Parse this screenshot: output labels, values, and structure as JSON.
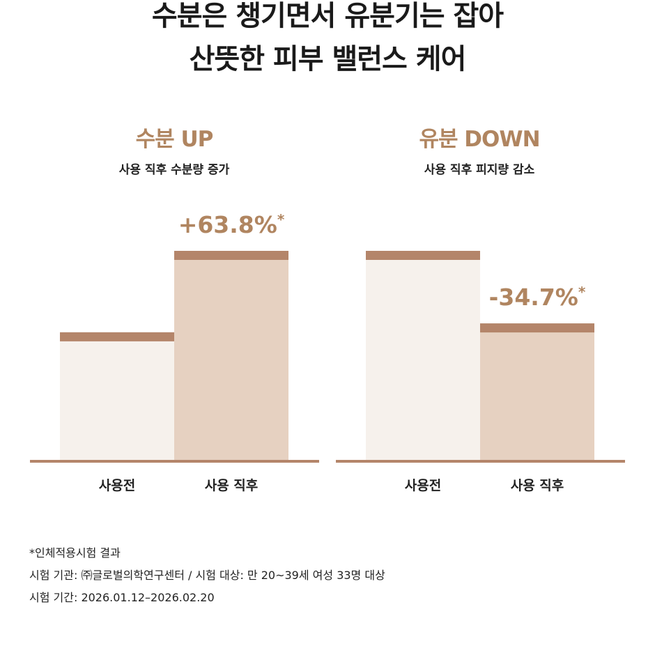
{
  "headline": {
    "line1": "수분은 챙기면서 유분기는 잡아",
    "line2": "산뜻한 피부 밸런스 케어"
  },
  "colors": {
    "accent": "#b08560",
    "bar_before": "#f6f1ec",
    "bar_after": "#e6d1c1",
    "bar_cap": "#b4856a",
    "baseline": "#b4856a"
  },
  "panels": [
    {
      "title": "수분 UP",
      "subtitle": "사용 직후 수분량 증가",
      "change_label": "+63.8%",
      "change_mark": "*"
    },
    {
      "title": "유분 DOWN",
      "subtitle": "사용 직후 피지량 감소",
      "change_label": "-34.7%",
      "change_mark": "*"
    }
  ],
  "chart_data": [
    {
      "type": "bar",
      "categories": [
        "사용전",
        "사용 직후"
      ],
      "values": [
        100,
        163.8
      ],
      "ylim": [
        0,
        170
      ]
    },
    {
      "type": "bar",
      "categories": [
        "사용전",
        "사용 직후"
      ],
      "values": [
        100,
        65.3
      ],
      "ylim": [
        0,
        105
      ]
    }
  ],
  "footnotes": [
    "*인체적용시험 결과",
    "시험 기관: ㈜글로벌의학연구센터 / 시험 대상: 만 20~39세 여성 33명 대상",
    "시험 기간: 2026.01.12–2026.02.20"
  ]
}
